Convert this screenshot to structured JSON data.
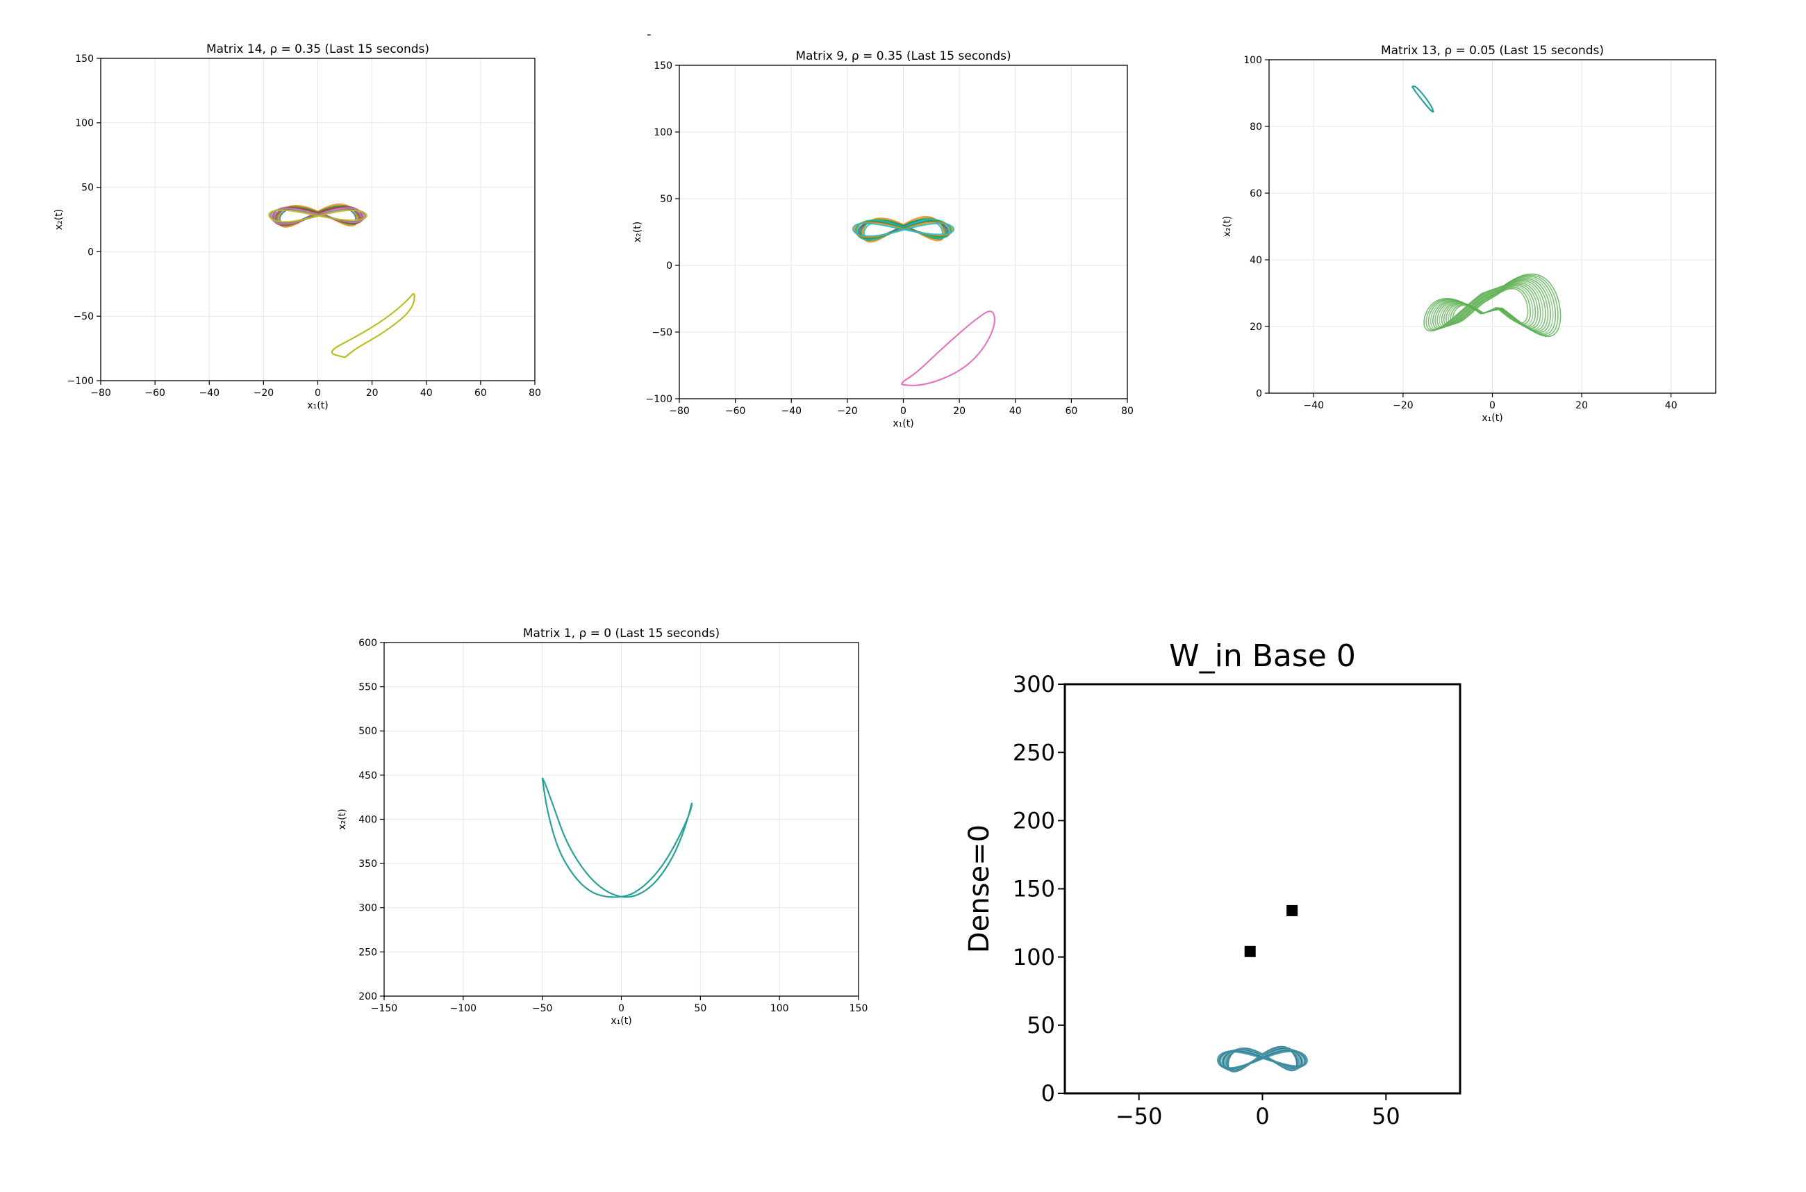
{
  "stray_mark": "-",
  "chart_data": [
    {
      "id": "p1",
      "type": "line",
      "title": "Matrix 14, ρ = 0.35 (Last 15 seconds)",
      "xlabel": "x₁(t)",
      "ylabel": "x₂(t)",
      "xlim": [
        -80,
        80
      ],
      "ylim": [
        -100,
        150
      ],
      "xticks": [
        -80,
        -60,
        -40,
        -20,
        0,
        20,
        40,
        60,
        80
      ],
      "yticks": [
        -100,
        -50,
        0,
        50,
        100,
        150
      ],
      "grid": true,
      "series": [
        {
          "kind": "butterfly",
          "center": [
            0,
            28
          ],
          "half_width": 18,
          "half_height": 15,
          "loops": 9,
          "colors": [
            "#1f77b4",
            "#ff7f0e",
            "#2ca02c",
            "#d62728",
            "#9467bd",
            "#8c564b",
            "#e377c2",
            "#7f7f7f",
            "#bcbd22",
            "#17becf"
          ]
        },
        {
          "kind": "ellipse_points",
          "color": "#bcbd22",
          "points": [
            [
              10,
              -82
            ],
            [
              3,
              -78
            ],
            [
              15,
              -65
            ],
            [
              25,
              -52
            ],
            [
              33,
              -38
            ],
            [
              36,
              -30
            ],
            [
              35,
              -45
            ],
            [
              25,
              -62
            ],
            [
              14,
              -75
            ],
            [
              10,
              -82
            ]
          ]
        }
      ]
    },
    {
      "id": "p2",
      "type": "line",
      "title": "Matrix 9, ρ = 0.35 (Last 15 seconds)",
      "xlabel": "x₁(t)",
      "ylabel": "x₂(t)",
      "xlim": [
        -80,
        80
      ],
      "ylim": [
        -100,
        150
      ],
      "xticks": [
        -80,
        -60,
        -40,
        -20,
        0,
        20,
        40,
        60,
        80
      ],
      "yticks": [
        -100,
        -50,
        0,
        50,
        100,
        150
      ],
      "grid": true,
      "series": [
        {
          "kind": "butterfly",
          "center": [
            0,
            27
          ],
          "half_width": 18,
          "half_height": 16,
          "loops": 9,
          "colors": [
            "#17becf",
            "#ff7f0e",
            "#2ca02c",
            "#1f77b4",
            "#8c564b",
            "#17becf",
            "#2ca02c",
            "#ff7f0e",
            "#17becf"
          ]
        },
        {
          "kind": "ellipse_points",
          "color": "#e377c2",
          "points": [
            [
              0,
              -87
            ],
            [
              -1,
              -90
            ],
            [
              8,
              -90
            ],
            [
              20,
              -80
            ],
            [
              28,
              -65
            ],
            [
              33,
              -45
            ],
            [
              32,
              -32
            ],
            [
              26,
              -40
            ],
            [
              15,
              -60
            ],
            [
              5,
              -80
            ],
            [
              0,
              -87
            ]
          ]
        }
      ]
    },
    {
      "id": "p3",
      "type": "line",
      "title": "Matrix 13, ρ = 0.05 (Last 15 seconds)",
      "xlabel": "x₁(t)",
      "ylabel": "x₂(t)",
      "xlim": [
        -50,
        50
      ],
      "ylim": [
        0,
        100
      ],
      "xticks": [
        -40,
        -20,
        0,
        20,
        40
      ],
      "yticks": [
        0,
        20,
        40,
        60,
        80,
        100
      ],
      "grid": true,
      "series": [
        {
          "kind": "ellipse_points",
          "color": "#2aa198",
          "points": [
            [
              -18,
              92
            ],
            [
              -17,
              90
            ],
            [
              -14,
              85
            ],
            [
              -13,
              84
            ],
            [
              -14,
              87
            ],
            [
              -17,
              92
            ],
            [
              -18,
              92
            ]
          ]
        },
        {
          "kind": "lorenz",
          "center": [
            -1,
            24
          ],
          "half_width": 13,
          "half_height": 13,
          "loops": 14,
          "colors": [
            "#6ab04c",
            "#4caf50",
            "#7cc576",
            "#5fa85a"
          ]
        }
      ]
    },
    {
      "id": "p4",
      "type": "line",
      "title": "Matrix 1, ρ = 0 (Last 15 seconds)",
      "xlabel": "x₁(t)",
      "ylabel": "x₂(t)",
      "xlim": [
        -150,
        150
      ],
      "ylim": [
        200,
        600
      ],
      "xticks": [
        -150,
        -100,
        -50,
        0,
        50,
        100,
        150
      ],
      "yticks": [
        200,
        250,
        300,
        350,
        400,
        450,
        500,
        550,
        600
      ],
      "grid": true,
      "series": [
        {
          "kind": "polyline",
          "color": "#2aa198",
          "points": [
            [
              -50,
              447
            ],
            [
              -48,
              440
            ],
            [
              -42,
              410
            ],
            [
              -35,
              375
            ],
            [
              -25,
              345
            ],
            [
              -15,
              325
            ],
            [
              -5,
              314
            ],
            [
              5,
              311
            ],
            [
              15,
              318
            ],
            [
              25,
              335
            ],
            [
              35,
              365
            ],
            [
              42,
              400
            ],
            [
              45,
              422
            ],
            [
              44,
              410
            ],
            [
              38,
              385
            ],
            [
              28,
              352
            ],
            [
              18,
              330
            ],
            [
              8,
              316
            ],
            [
              0,
              312
            ],
            [
              -10,
              312
            ],
            [
              -20,
              318
            ],
            [
              -30,
              335
            ],
            [
              -40,
              365
            ],
            [
              -47,
              410
            ],
            [
              -50,
              447
            ]
          ]
        }
      ]
    },
    {
      "id": "p5",
      "type": "scatter",
      "title": "W_in Base 0",
      "xlabel": "",
      "ylabel": "Dense=0",
      "xlim": [
        -80,
        80
      ],
      "ylim": [
        0,
        300
      ],
      "xticks": [
        -50,
        0,
        50
      ],
      "yticks": [
        0,
        50,
        100,
        150,
        200,
        250,
        300
      ],
      "grid": false,
      "series": [
        {
          "kind": "butterfly",
          "center": [
            0,
            25
          ],
          "half_width": 18,
          "half_height": 20,
          "loops": 7,
          "colors": [
            "#2e6f8e",
            "#3b8ea5",
            "#5fb3b3",
            "#1f5f7a",
            "#7cc8c8"
          ]
        },
        {
          "kind": "squares",
          "color": "#000000",
          "points": [
            [
              -5,
              104
            ],
            [
              12,
              134
            ]
          ]
        }
      ]
    }
  ]
}
